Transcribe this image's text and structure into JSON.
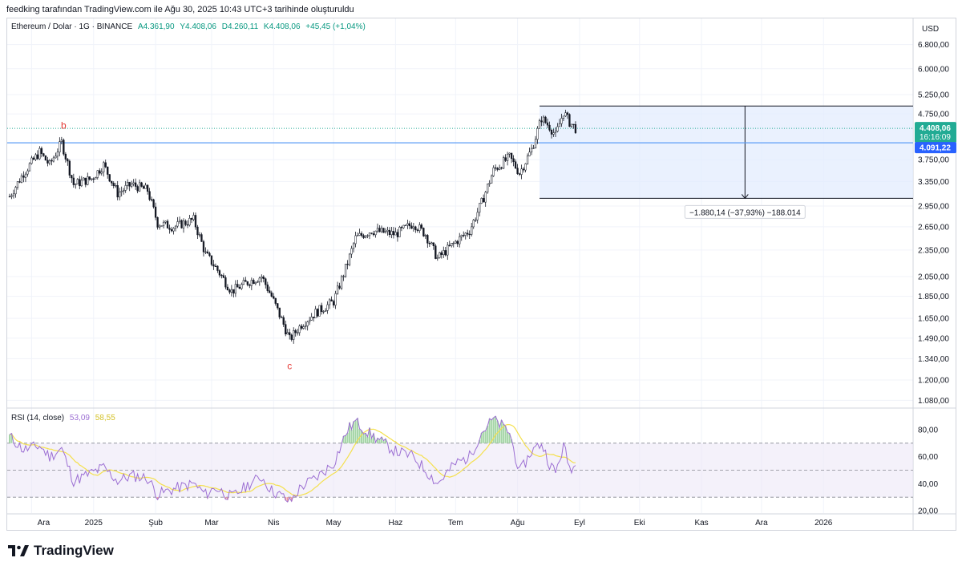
{
  "header": {
    "attribution": "feedking tarafından TradingView.com ile Ağu 30, 2025 10:43 UTC+3 tarihinde oluşturuldu"
  },
  "legend": {
    "symbol": "Ethereum / Dolar · 1G · BINANCE",
    "open": "A4.361,90",
    "high": "Y4.408,06",
    "low": "D4.260,11",
    "close": "K4.408,06",
    "change": "+45,45 (+1,04%)"
  },
  "rsi_legend": {
    "name": "RSI (14, close)",
    "value": "53,09",
    "ma": "58,55"
  },
  "footer": {
    "brand": "TradingView"
  },
  "colors": {
    "up": "#26a69a",
    "down": "#ef5350",
    "candle": "#131722",
    "level_line": "#5b9cf6",
    "zone_fill": "#e3ecfd",
    "rsi": "#9c6fd3",
    "rsi_ma": "#f4e04d",
    "rsi_band": "#ede7f6",
    "price_tag": "#22ab94",
    "level_tag": "#2962ff"
  },
  "chart_data": {
    "type": "candlestick",
    "currency": "USD",
    "y_axis_scale": "log",
    "price_ticks": [
      "6.800,00",
      "6.000,00",
      "5.250,00",
      "4.750,00",
      "4.408,06",
      "3.750,00",
      "3.350,00",
      "2.950,00",
      "2.650,00",
      "2.350,00",
      "2.050,00",
      "1.850,00",
      "1.650,00",
      "1.490,00",
      "1.340,00",
      "1.200,00",
      "1.080,00"
    ],
    "x_ticks": [
      "Ara",
      "2025",
      "Şub",
      "Mar",
      "Nis",
      "May",
      "Haz",
      "Tem",
      "Ağu",
      "Eyl",
      "Eki",
      "Kas",
      "Ara",
      "2026"
    ],
    "last_price": 4408.06,
    "last_price_label": "4.408,06",
    "countdown": "16:16:09",
    "horizontal_level": 4091.22,
    "horizontal_level_label": "4.091,22",
    "measure_zone": {
      "top": 4950,
      "bottom": 3070,
      "label": "−1.880,14 (−37,93%) −188.014"
    },
    "wave_labels": [
      {
        "text": "b",
        "date": "2024-12-17",
        "price": 4150
      },
      {
        "text": "c",
        "date": "2025-04-09",
        "price": 1380
      }
    ],
    "price_path": [
      [
        "2024-11-20",
        3100
      ],
      [
        "2024-11-27",
        3500
      ],
      [
        "2024-12-05",
        3900
      ],
      [
        "2024-12-10",
        3650
      ],
      [
        "2024-12-16",
        4100
      ],
      [
        "2024-12-22",
        3300
      ],
      [
        "2024-12-31",
        3400
      ],
      [
        "2025-01-06",
        3650
      ],
      [
        "2025-01-13",
        3150
      ],
      [
        "2025-01-20",
        3300
      ],
      [
        "2025-01-28",
        3200
      ],
      [
        "2025-02-02",
        2700
      ],
      [
        "2025-02-10",
        2650
      ],
      [
        "2025-02-20",
        2750
      ],
      [
        "2025-02-26",
        2300
      ],
      [
        "2025-03-03",
        2150
      ],
      [
        "2025-03-11",
        1900
      ],
      [
        "2025-03-20",
        2000
      ],
      [
        "2025-03-26",
        2050
      ],
      [
        "2025-03-31",
        1850
      ],
      [
        "2025-04-06",
        1600
      ],
      [
        "2025-04-09",
        1480
      ],
      [
        "2025-04-15",
        1600
      ],
      [
        "2025-04-22",
        1700
      ],
      [
        "2025-05-01",
        1800
      ],
      [
        "2025-05-08",
        2200
      ],
      [
        "2025-05-12",
        2500
      ],
      [
        "2025-05-20",
        2600
      ],
      [
        "2025-06-01",
        2550
      ],
      [
        "2025-06-10",
        2700
      ],
      [
        "2025-06-16",
        2550
      ],
      [
        "2025-06-22",
        2250
      ],
      [
        "2025-07-01",
        2450
      ],
      [
        "2025-07-08",
        2600
      ],
      [
        "2025-07-14",
        3000
      ],
      [
        "2025-07-20",
        3550
      ],
      [
        "2025-07-28",
        3800
      ],
      [
        "2025-08-02",
        3500
      ],
      [
        "2025-08-08",
        3950
      ],
      [
        "2025-08-13",
        4650
      ],
      [
        "2025-08-17",
        4450
      ],
      [
        "2025-08-20",
        4250
      ],
      [
        "2025-08-24",
        4800
      ],
      [
        "2025-08-27",
        4550
      ],
      [
        "2025-08-30",
        4408
      ]
    ],
    "rsi_ticks": [
      "80,00",
      "60,00",
      "40,00",
      "20,00"
    ],
    "rsi_bands": [
      70,
      50,
      30
    ],
    "rsi_path": [
      [
        "2024-11-20",
        75
      ],
      [
        "2024-11-27",
        65
      ],
      [
        "2024-12-05",
        68
      ],
      [
        "2024-12-10",
        60
      ],
      [
        "2024-12-16",
        66
      ],
      [
        "2024-12-22",
        42
      ],
      [
        "2024-12-31",
        48
      ],
      [
        "2025-01-06",
        52
      ],
      [
        "2025-01-13",
        42
      ],
      [
        "2025-01-20",
        46
      ],
      [
        "2025-01-28",
        44
      ],
      [
        "2025-02-02",
        32
      ],
      [
        "2025-02-10",
        36
      ],
      [
        "2025-02-20",
        40
      ],
      [
        "2025-02-26",
        32
      ],
      [
        "2025-03-03",
        37
      ],
      [
        "2025-03-11",
        30
      ],
      [
        "2025-03-20",
        40
      ],
      [
        "2025-03-26",
        45
      ],
      [
        "2025-03-31",
        35
      ],
      [
        "2025-04-06",
        30
      ],
      [
        "2025-04-09",
        26
      ],
      [
        "2025-04-15",
        38
      ],
      [
        "2025-04-22",
        44
      ],
      [
        "2025-05-01",
        55
      ],
      [
        "2025-05-08",
        80
      ],
      [
        "2025-05-12",
        86
      ],
      [
        "2025-05-20",
        76
      ],
      [
        "2025-06-01",
        64
      ],
      [
        "2025-06-10",
        60
      ],
      [
        "2025-06-16",
        50
      ],
      [
        "2025-06-22",
        40
      ],
      [
        "2025-07-01",
        55
      ],
      [
        "2025-07-08",
        60
      ],
      [
        "2025-07-14",
        78
      ],
      [
        "2025-07-20",
        88
      ],
      [
        "2025-07-28",
        78
      ],
      [
        "2025-08-02",
        48
      ],
      [
        "2025-08-08",
        64
      ],
      [
        "2025-08-13",
        70
      ],
      [
        "2025-08-17",
        55
      ],
      [
        "2025-08-20",
        48
      ],
      [
        "2025-08-24",
        68
      ],
      [
        "2025-08-27",
        52
      ],
      [
        "2025-08-30",
        53
      ]
    ]
  }
}
